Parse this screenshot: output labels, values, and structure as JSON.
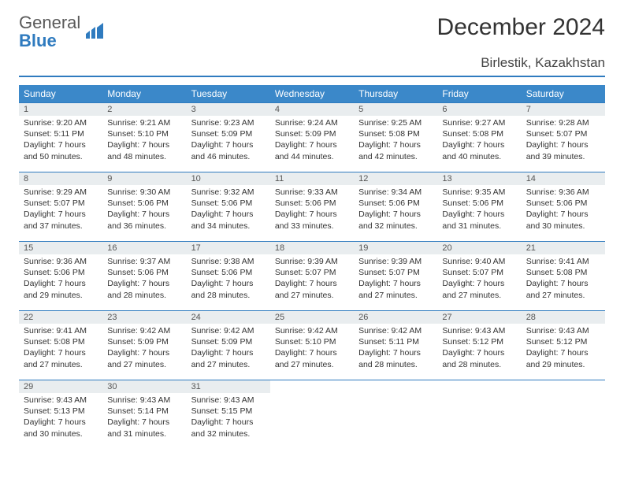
{
  "logo": {
    "word1": "General",
    "word2": "Blue"
  },
  "title": "December 2024",
  "location": "Birlestik, Kazakhstan",
  "colors": {
    "header_bg": "#3b88c9",
    "rule": "#2f7bbf",
    "daynum_bg": "#e9edef",
    "text": "#333333"
  },
  "weekdays": [
    "Sunday",
    "Monday",
    "Tuesday",
    "Wednesday",
    "Thursday",
    "Friday",
    "Saturday"
  ],
  "days": [
    {
      "n": "1",
      "sunrise": "Sunrise: 9:20 AM",
      "sunset": "Sunset: 5:11 PM",
      "day": "Daylight: 7 hours and 50 minutes."
    },
    {
      "n": "2",
      "sunrise": "Sunrise: 9:21 AM",
      "sunset": "Sunset: 5:10 PM",
      "day": "Daylight: 7 hours and 48 minutes."
    },
    {
      "n": "3",
      "sunrise": "Sunrise: 9:23 AM",
      "sunset": "Sunset: 5:09 PM",
      "day": "Daylight: 7 hours and 46 minutes."
    },
    {
      "n": "4",
      "sunrise": "Sunrise: 9:24 AM",
      "sunset": "Sunset: 5:09 PM",
      "day": "Daylight: 7 hours and 44 minutes."
    },
    {
      "n": "5",
      "sunrise": "Sunrise: 9:25 AM",
      "sunset": "Sunset: 5:08 PM",
      "day": "Daylight: 7 hours and 42 minutes."
    },
    {
      "n": "6",
      "sunrise": "Sunrise: 9:27 AM",
      "sunset": "Sunset: 5:08 PM",
      "day": "Daylight: 7 hours and 40 minutes."
    },
    {
      "n": "7",
      "sunrise": "Sunrise: 9:28 AM",
      "sunset": "Sunset: 5:07 PM",
      "day": "Daylight: 7 hours and 39 minutes."
    },
    {
      "n": "8",
      "sunrise": "Sunrise: 9:29 AM",
      "sunset": "Sunset: 5:07 PM",
      "day": "Daylight: 7 hours and 37 minutes."
    },
    {
      "n": "9",
      "sunrise": "Sunrise: 9:30 AM",
      "sunset": "Sunset: 5:06 PM",
      "day": "Daylight: 7 hours and 36 minutes."
    },
    {
      "n": "10",
      "sunrise": "Sunrise: 9:32 AM",
      "sunset": "Sunset: 5:06 PM",
      "day": "Daylight: 7 hours and 34 minutes."
    },
    {
      "n": "11",
      "sunrise": "Sunrise: 9:33 AM",
      "sunset": "Sunset: 5:06 PM",
      "day": "Daylight: 7 hours and 33 minutes."
    },
    {
      "n": "12",
      "sunrise": "Sunrise: 9:34 AM",
      "sunset": "Sunset: 5:06 PM",
      "day": "Daylight: 7 hours and 32 minutes."
    },
    {
      "n": "13",
      "sunrise": "Sunrise: 9:35 AM",
      "sunset": "Sunset: 5:06 PM",
      "day": "Daylight: 7 hours and 31 minutes."
    },
    {
      "n": "14",
      "sunrise": "Sunrise: 9:36 AM",
      "sunset": "Sunset: 5:06 PM",
      "day": "Daylight: 7 hours and 30 minutes."
    },
    {
      "n": "15",
      "sunrise": "Sunrise: 9:36 AM",
      "sunset": "Sunset: 5:06 PM",
      "day": "Daylight: 7 hours and 29 minutes."
    },
    {
      "n": "16",
      "sunrise": "Sunrise: 9:37 AM",
      "sunset": "Sunset: 5:06 PM",
      "day": "Daylight: 7 hours and 28 minutes."
    },
    {
      "n": "17",
      "sunrise": "Sunrise: 9:38 AM",
      "sunset": "Sunset: 5:06 PM",
      "day": "Daylight: 7 hours and 28 minutes."
    },
    {
      "n": "18",
      "sunrise": "Sunrise: 9:39 AM",
      "sunset": "Sunset: 5:07 PM",
      "day": "Daylight: 7 hours and 27 minutes."
    },
    {
      "n": "19",
      "sunrise": "Sunrise: 9:39 AM",
      "sunset": "Sunset: 5:07 PM",
      "day": "Daylight: 7 hours and 27 minutes."
    },
    {
      "n": "20",
      "sunrise": "Sunrise: 9:40 AM",
      "sunset": "Sunset: 5:07 PM",
      "day": "Daylight: 7 hours and 27 minutes."
    },
    {
      "n": "21",
      "sunrise": "Sunrise: 9:41 AM",
      "sunset": "Sunset: 5:08 PM",
      "day": "Daylight: 7 hours and 27 minutes."
    },
    {
      "n": "22",
      "sunrise": "Sunrise: 9:41 AM",
      "sunset": "Sunset: 5:08 PM",
      "day": "Daylight: 7 hours and 27 minutes."
    },
    {
      "n": "23",
      "sunrise": "Sunrise: 9:42 AM",
      "sunset": "Sunset: 5:09 PM",
      "day": "Daylight: 7 hours and 27 minutes."
    },
    {
      "n": "24",
      "sunrise": "Sunrise: 9:42 AM",
      "sunset": "Sunset: 5:09 PM",
      "day": "Daylight: 7 hours and 27 minutes."
    },
    {
      "n": "25",
      "sunrise": "Sunrise: 9:42 AM",
      "sunset": "Sunset: 5:10 PM",
      "day": "Daylight: 7 hours and 27 minutes."
    },
    {
      "n": "26",
      "sunrise": "Sunrise: 9:42 AM",
      "sunset": "Sunset: 5:11 PM",
      "day": "Daylight: 7 hours and 28 minutes."
    },
    {
      "n": "27",
      "sunrise": "Sunrise: 9:43 AM",
      "sunset": "Sunset: 5:12 PM",
      "day": "Daylight: 7 hours and 28 minutes."
    },
    {
      "n": "28",
      "sunrise": "Sunrise: 9:43 AM",
      "sunset": "Sunset: 5:12 PM",
      "day": "Daylight: 7 hours and 29 minutes."
    },
    {
      "n": "29",
      "sunrise": "Sunrise: 9:43 AM",
      "sunset": "Sunset: 5:13 PM",
      "day": "Daylight: 7 hours and 30 minutes."
    },
    {
      "n": "30",
      "sunrise": "Sunrise: 9:43 AM",
      "sunset": "Sunset: 5:14 PM",
      "day": "Daylight: 7 hours and 31 minutes."
    },
    {
      "n": "31",
      "sunrise": "Sunrise: 9:43 AM",
      "sunset": "Sunset: 5:15 PM",
      "day": "Daylight: 7 hours and 32 minutes."
    }
  ]
}
